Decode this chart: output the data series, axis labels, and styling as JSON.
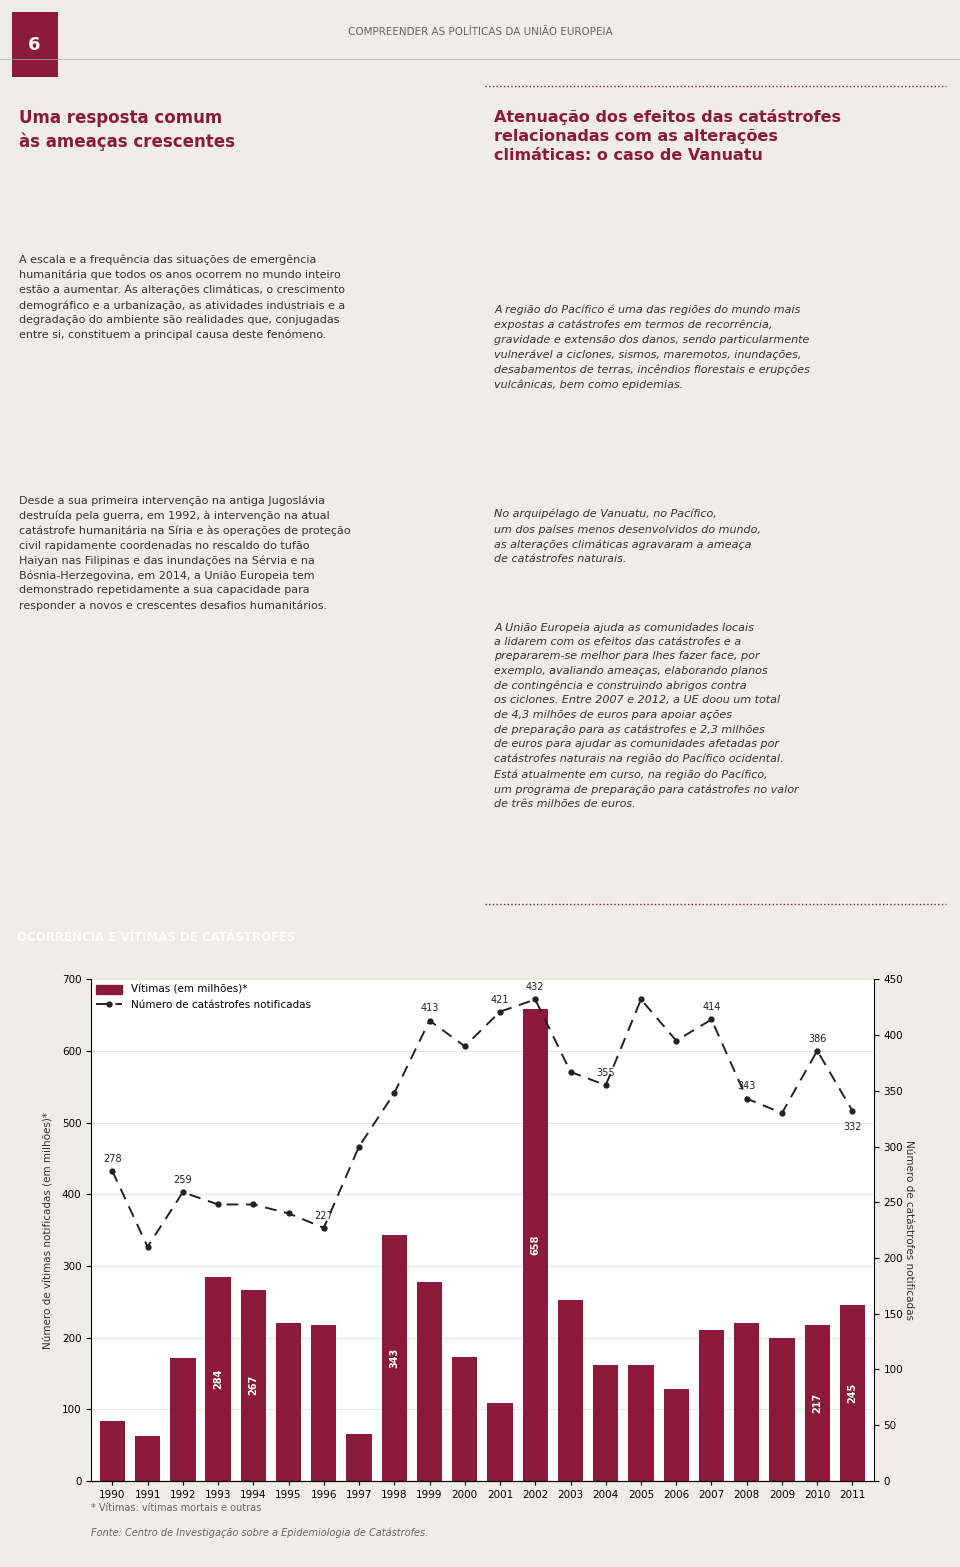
{
  "page_title": "COMPREENDER AS POLÍTICAS DA UNIÃO EUROPEIA",
  "page_number": "6",
  "section_title": "Uma resposta comum\nàs ameaças crescentes",
  "left_body_1": "A escala e a frequência das situações de emergência\nhumanitária que todos os anos ocorrem no mundo inteiro\nestão a aumentar. As alterações climáticas, o crescimento\ndemográfico e a urbanização, as atividades industriais e a\ndegradação do ambiente são realidades que, conjugadas\nentre si, constituem a principal causa deste fenómeno.",
  "left_body_2": "Desde a sua primeira intervenção na antiga Jugoslávia\ndestruída pela guerra, em 1992, à intervenção na atual\ncatástrofe humanitária na Síria e às operações de proteção\ncivil rapidamente coordenadas no rescaldo do tufão\nHaiyan nas Filipinas e das inundações na Sérvia e na\nBósnia-Herzegovina, em 2014, a União Europeia tem\ndemonstrado repetidamente a sua capacidade para\nresponder a novos e crescentes desafios humanitários.",
  "right_title": "Atenuação dos efeitos das catástrofes\nrelacionadas com as alterações\nclimáticas: o caso de Vanuatu",
  "right_body_1": "A região do Pacífico é uma das regiões do mundo mais\nexpostas a catástrofes em termos de recorrência,\ngravidade e extensão dos danos, sendo particularmente\nvulnerável a ciclones, sismos, maremotos, inundações,\ndesabamentos de terras, incêndios florestais e erupções\nvulcânicas, bem como epidemias.",
  "right_body_2": "No arquipélago de Vanuatu, no Pacífico,\num dos países menos desenvolvidos do mundo,\nas alterações climáticas agravaram a ameaça\nde catástrofes naturais.",
  "right_body_3": "A União Europeia ajuda as comunidades locais\na lidarem com os efeitos das catástrofes e a\nprepararem-se melhor para lhes fazer face, por\nexemplo, avaliando ameaças, elaborando planos\nde contingência e construindo abrigos contra\nos ciclones. Entre 2007 e 2012, a UE doou um total\nde 4,3 milhões de euros para apoiar ações\nde preparação para as catástrofes e 2,3 milhões\nde euros para ajudar as comunidades afetadas por\ncatástrofes naturais na região do Pacífico ocidental.\nEstá atualmente em curso, na região do Pacífico,\num programa de preparação para catástrofes no valor\nde três milhões de euros.",
  "chart_header": "OCORRÊNCIA E VÍTIMAS DE CATÁSTROFES",
  "years": [
    1990,
    1991,
    1992,
    1993,
    1994,
    1995,
    1996,
    1997,
    1998,
    1999,
    2000,
    2001,
    2002,
    2003,
    2004,
    2005,
    2006,
    2007,
    2008,
    2009,
    2010,
    2011
  ],
  "bar_values": [
    83,
    63,
    172,
    284,
    267,
    220,
    218,
    65,
    343,
    278,
    173,
    109,
    658,
    253,
    161,
    162,
    128,
    210,
    220,
    200,
    217,
    245
  ],
  "line_values": [
    278,
    210,
    259,
    248,
    248,
    240,
    227,
    300,
    348,
    413,
    390,
    421,
    432,
    367,
    355,
    432,
    395,
    414,
    343,
    330,
    386,
    332
  ],
  "bar_labels": [
    "",
    "",
    "",
    "284",
    "267",
    "",
    "",
    "",
    "343",
    "",
    "",
    "",
    "658",
    "",
    "",
    "",
    "",
    "",
    "",
    "",
    "217",
    "245"
  ],
  "line_labels_idx": [
    0,
    2,
    6,
    9,
    11,
    12,
    14,
    17,
    18,
    20,
    21
  ],
  "line_labels_txt": [
    "278",
    "259",
    "227",
    "413",
    "421",
    "432",
    "355",
    "414",
    "343",
    "386",
    "332"
  ],
  "bar_color": "#8B1A3A",
  "line_color": "#222222",
  "left_ylim": [
    0,
    700
  ],
  "right_ylim": [
    0,
    450
  ],
  "left_yticks": [
    0,
    100,
    200,
    300,
    400,
    500,
    600,
    700
  ],
  "right_yticks": [
    0,
    50,
    100,
    150,
    200,
    250,
    300,
    350,
    400,
    450
  ],
  "legend_bar_label": "Vítimas (em milhões)*",
  "legend_line_label": "Número de catástrofes notificadas",
  "footnote1": "* Vítimas: vítimas mortais e outras",
  "footnote2": "Fonte: Centro de Investigação sobre a Epidemiologia de Catástrofes.",
  "bg_color": "#ffffff",
  "header_bg_color": "#8B1A3A",
  "header_text_color": "#ffffff",
  "page_bg_color": "#f0ede8",
  "text_color_dark": "#333333",
  "text_color_mid": "#666666",
  "crimson": "#8B1A3A"
}
